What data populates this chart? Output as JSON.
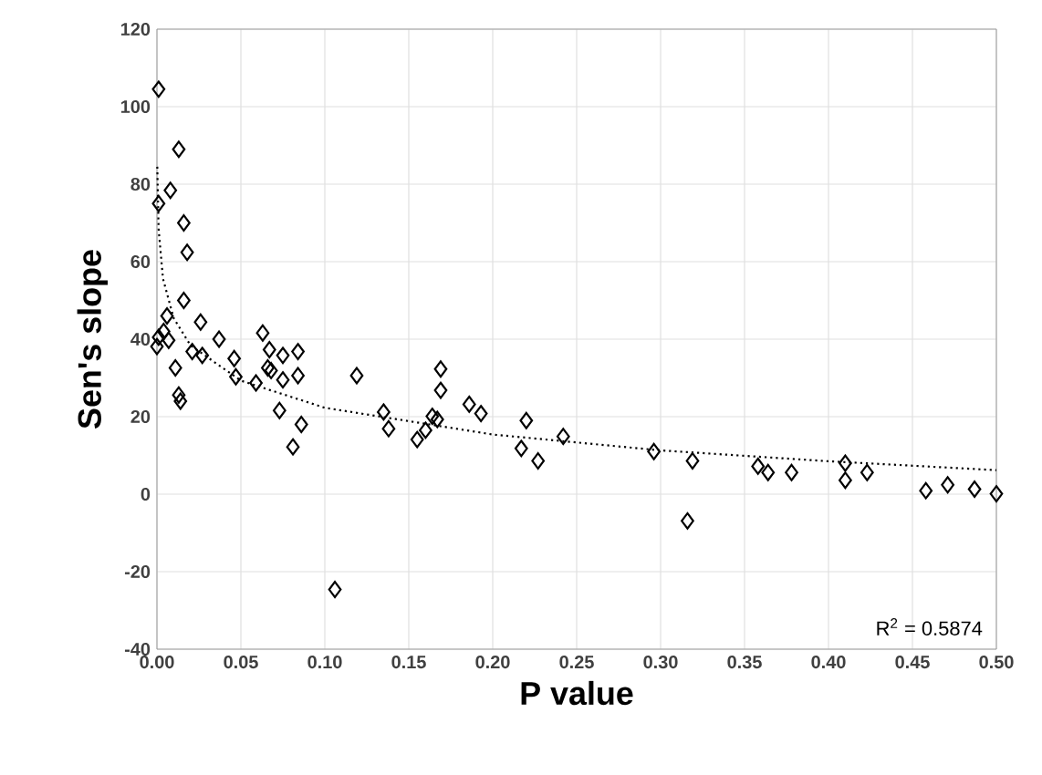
{
  "chart_data": {
    "type": "scatter",
    "xlabel": "P value",
    "ylabel": "Sen's slope",
    "xlim": [
      0,
      0.5
    ],
    "ylim": [
      -40,
      120
    ],
    "xticks": [
      {
        "value": 0,
        "label": "0.00"
      },
      0.05,
      {
        "value": 0.1,
        "label": "0.10"
      },
      0.15,
      {
        "value": 0.2,
        "label": "0.20"
      },
      0.25,
      {
        "value": 0.3,
        "label": "0.30"
      },
      0.35,
      {
        "value": 0.4,
        "label": "0.40"
      },
      0.45,
      {
        "value": 0.5,
        "label": "0.50"
      }
    ],
    "yticks": [
      -40,
      -20,
      0,
      20,
      40,
      60,
      80,
      100,
      120
    ],
    "grid": true,
    "series": [
      {
        "color": "#000000",
        "marker": "diamond",
        "x": [
          0.001,
          0.001,
          0.013,
          0.008,
          0.016,
          0.018,
          0.016,
          0.006,
          0.026,
          0.001,
          0.004,
          0.0,
          0.007,
          0.011,
          0.013,
          0.014,
          0.021,
          0.027,
          0.037,
          0.046,
          0.047,
          0.059,
          0.063,
          0.067,
          0.066,
          0.075,
          0.084,
          0.084,
          0.068,
          0.075,
          0.073,
          0.086,
          0.081,
          0.106,
          0.119,
          0.135,
          0.138,
          0.155,
          0.16,
          0.164,
          0.167,
          0.169,
          0.169,
          0.186,
          0.193,
          0.22,
          0.217,
          0.227,
          0.242,
          0.296,
          0.319,
          0.316,
          0.358,
          0.364,
          0.378,
          0.41,
          0.41,
          0.423,
          0.458,
          0.471,
          0.487,
          0.5
        ],
        "values": [
          104.5,
          75,
          89,
          78.4,
          70,
          62.4,
          50,
          46,
          44.4,
          40.5,
          42,
          38.1,
          39.7,
          32.6,
          25.6,
          24,
          36.8,
          35.8,
          40,
          35,
          30.3,
          28.7,
          41.6,
          37.3,
          32.6,
          35.8,
          36.8,
          30.6,
          31.9,
          29.5,
          21.6,
          18,
          12.2,
          -24.6,
          30.6,
          21.2,
          16.9,
          14.1,
          16.5,
          20.1,
          19.3,
          32.3,
          26.8,
          23.2,
          20.8,
          19,
          11.8,
          8.6,
          14.9,
          11,
          8.6,
          -6.9,
          7.2,
          5.6,
          5.6,
          8,
          3.6,
          5.6,
          0.9,
          2.4,
          1.3,
          0.1
        ]
      },
      {
        "type": "line",
        "color": "#000000",
        "marker": "none",
        "line_style": "dotted",
        "x": [
          0.0002,
          0.001,
          0.0036,
          0.01,
          0.02,
          0.05,
          0.1,
          0.2,
          0.3,
          0.4,
          0.5
        ],
        "values": [
          84.5,
          68.4,
          55.6,
          45.4,
          38.4,
          29.3,
          22.3,
          15.4,
          11.3,
          8.5,
          6.2
        ]
      }
    ],
    "annotations": [
      "R$^{2}$ = 0.5874"
    ]
  }
}
